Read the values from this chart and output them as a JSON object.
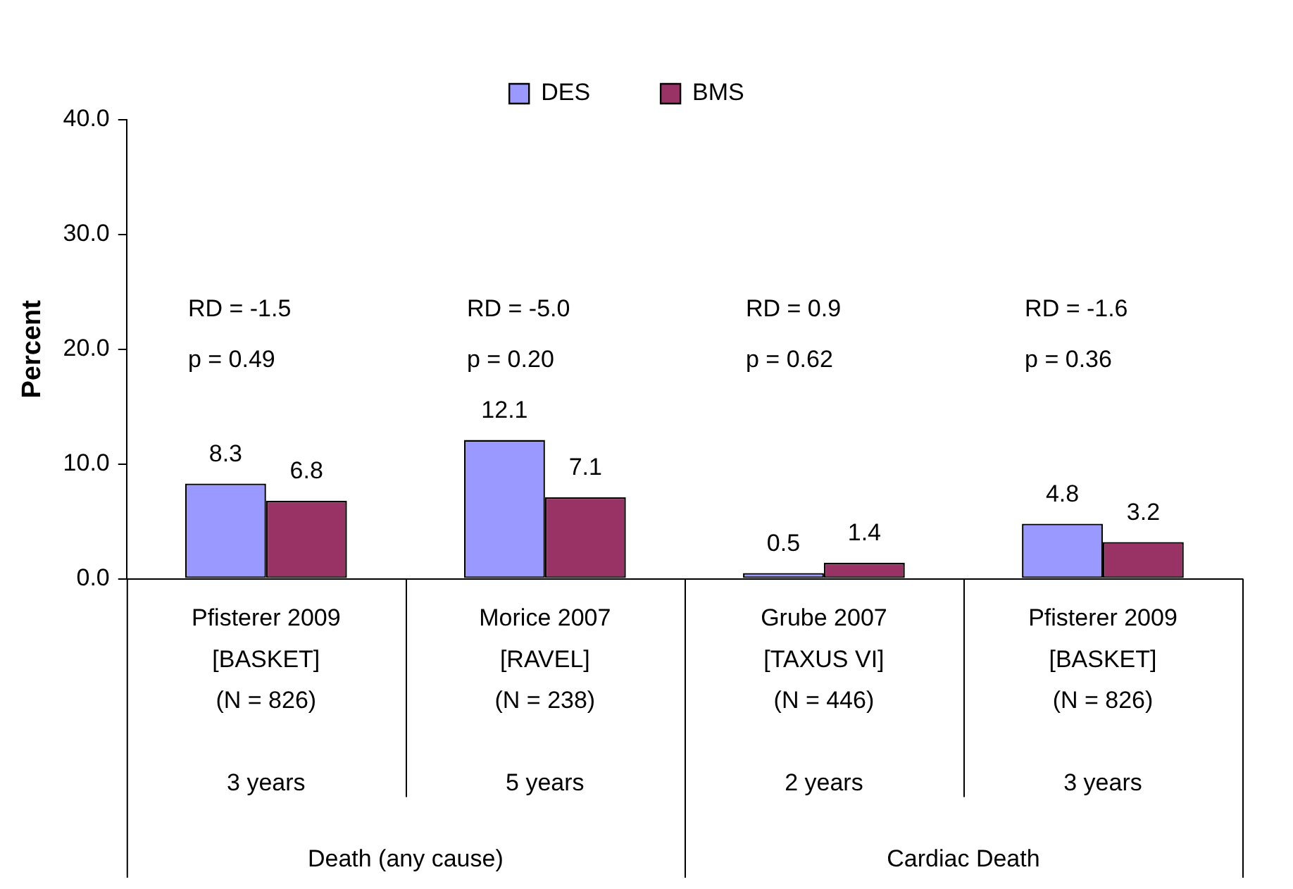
{
  "chart_data": {
    "type": "bar",
    "ylabel": "Percent",
    "categories": [
      "Pfisterer 2009\n[BASKET]\n(N = 826)\n\n3 years",
      "Morice 2007\n[RAVEL]\n(N = 238)\n\n5 years",
      "Grube 2007\n[TAXUS VI]\n(N = 446)\n\n2 years",
      "Pfisterer 2009\n[BASKET]\n(N = 826)\n\n3 years"
    ],
    "series": [
      {
        "name": "DES",
        "color": "#9999ff",
        "values": [
          8.3,
          12.1,
          0.5,
          4.8
        ]
      },
      {
        "name": "BMS",
        "color": "#993366",
        "values": [
          6.8,
          7.1,
          1.4,
          3.2
        ]
      }
    ],
    "ylim": [
      0,
      40
    ],
    "yticks": [
      {
        "value": 0,
        "label": "0.0"
      },
      {
        "value": 10,
        "label": "10.0"
      },
      {
        "value": 20,
        "label": "20.0"
      },
      {
        "value": 30,
        "label": "30.0"
      },
      {
        "value": 40,
        "label": "40.0"
      }
    ],
    "data_labels": true,
    "grid": false,
    "legend": "top",
    "annotations": [
      "RD = -1.5\np = 0.49",
      "RD = -5.0\np = 0.20",
      "RD = 0.9\np = 0.62",
      "RD = -1.6\np = 0.36",
      "Death (any cause)",
      "Cardiac Death"
    ]
  }
}
